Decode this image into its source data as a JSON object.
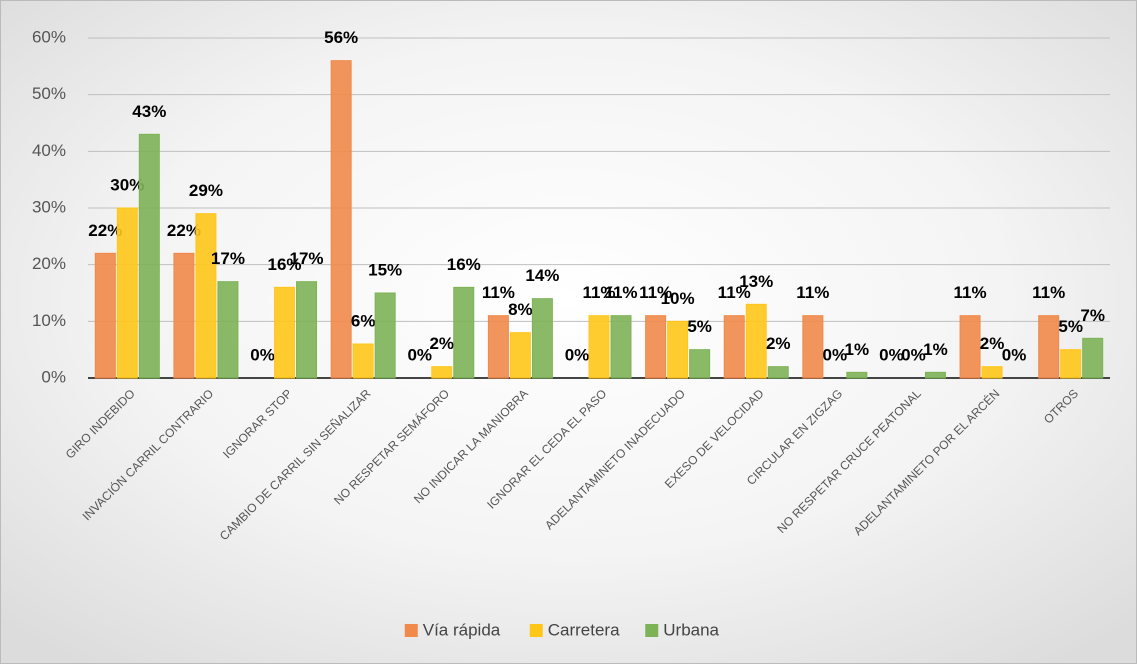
{
  "chart_data": {
    "type": "bar",
    "categories": [
      "GIRO INDEBIDO",
      "INVACIÓN CARRIL CONTRARIO",
      "IGNORAR STOP",
      "CAMBIO DE CARRIL SIN SEÑALIZAR",
      "NO RESPETAR SEMÁFORO",
      "NO INDICAR LA MANIOBRA",
      "IGNORAR EL CEDA EL PASO",
      "ADELANTAMINETO INADECUADO",
      "EXESO DE VELOCIDAD",
      "CIRCULAR EN ZIGZAG",
      "NO RESPETAR CRUCE PEATONAL",
      "ADELANTAMINETO POR EL ARCÉN",
      "OTROS"
    ],
    "series": [
      {
        "name": "Vía rápida",
        "color": "#F0894A",
        "values": [
          22,
          22,
          0,
          56,
          0,
          11,
          0,
          11,
          11,
          11,
          0,
          11,
          11
        ],
        "value_labels": [
          "22%",
          "22%",
          "0%",
          "56%",
          "0%",
          "11%",
          "0%",
          "11%",
          "11%",
          "11%",
          "0%",
          "11%",
          "11%"
        ]
      },
      {
        "name": "Carretera",
        "color": "#FFC61A",
        "values": [
          30,
          29,
          16,
          6,
          2,
          8,
          11,
          10,
          13,
          0,
          0,
          2,
          5
        ],
        "value_labels": [
          "30%",
          "29%",
          "16%",
          "6%",
          "2%",
          "8%",
          "11%",
          "10%",
          "13%",
          "0%",
          "0%",
          "2%",
          "5%"
        ]
      },
      {
        "name": "Urbana",
        "color": "#7DB356",
        "values": [
          43,
          17,
          17,
          15,
          16,
          14,
          11,
          5,
          2,
          1,
          1,
          0,
          7
        ],
        "value_labels": [
          "43%",
          "17%",
          "17%",
          "15%",
          "16%",
          "14%",
          "11%",
          "5%",
          "2%",
          "1%",
          "1%",
          "0%",
          "7%"
        ]
      }
    ],
    "ylim": [
      0,
      60
    ],
    "yticks": [
      {
        "value": 0,
        "label": "0%"
      },
      {
        "value": 10,
        "label": "10%"
      },
      {
        "value": 20,
        "label": "20%"
      },
      {
        "value": 30,
        "label": "30%"
      },
      {
        "value": 40,
        "label": "40%"
      },
      {
        "value": 50,
        "label": "50%"
      },
      {
        "value": 60,
        "label": "60%"
      }
    ],
    "grid": true,
    "legend": "bottom"
  }
}
